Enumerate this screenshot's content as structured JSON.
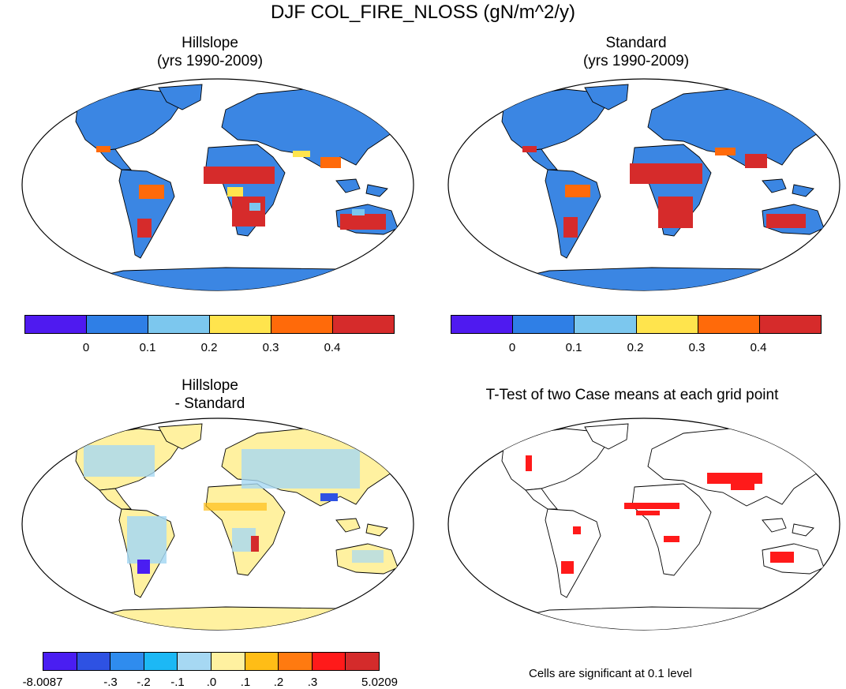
{
  "figure_title": "DJF COL_FIRE_NLOSS (gN/m^2/y)",
  "panels": [
    {
      "id": "hillslope",
      "title_line1": "Hillslope",
      "title_line2": "(yrs 1990-2009)"
    },
    {
      "id": "standard",
      "title_line1": "Standard",
      "title_line2": "(yrs 1990-2009)"
    },
    {
      "id": "difference",
      "title_line1": "Hillslope",
      "title_line2": "- Standard"
    },
    {
      "id": "ttest",
      "title_line1": "T-Test of two Case means at each grid point",
      "title_line2": ""
    }
  ],
  "colorbar_main": {
    "colors": [
      "#4f1af0",
      "#2f7fe6",
      "#7cc7ee",
      "#ffe44d",
      "#ff6a0a",
      "#d62b2b"
    ],
    "tick_labels": [
      "0",
      "0.1",
      "0.2",
      "0.3",
      "0.4"
    ]
  },
  "colorbar_diff": {
    "colors": [
      "#4a1ef2",
      "#2e52e3",
      "#2f8cee",
      "#1cb8f5",
      "#a6d8f3",
      "#fff1a0",
      "#ffbd16",
      "#ff7a10",
      "#ff1a1a",
      "#d42b2b"
    ],
    "tick_labels": [
      "-8.0087",
      "-.3",
      "-.2",
      "-.1",
      ".0",
      ".1",
      ".2",
      ".3",
      "5.0209"
    ]
  },
  "ttest_note": "Cells are significant at 0.1 level"
}
